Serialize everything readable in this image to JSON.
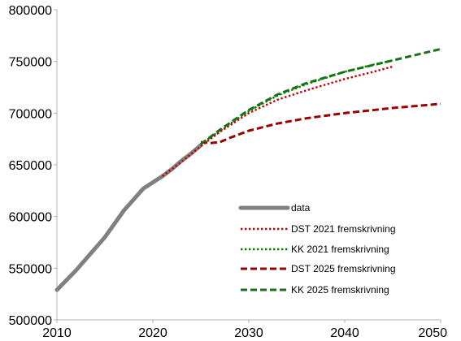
{
  "chart_data": {
    "type": "line",
    "title": "",
    "xlabel": "",
    "ylabel": "",
    "xlim": [
      2010,
      2050
    ],
    "ylim": [
      500000,
      800000
    ],
    "x_ticks": [
      "2010",
      "2020",
      "2030",
      "2040",
      "2050"
    ],
    "y_ticks": [
      "500000",
      "550000",
      "600000",
      "650000",
      "700000",
      "750000",
      "800000"
    ],
    "grid": false,
    "legend_position": "inside-bottom-right",
    "series": [
      {
        "name": "data",
        "color": "#808080",
        "style": "solid",
        "x": [
          2010,
          2012,
          2015,
          2017,
          2019,
          2020,
          2021,
          2022,
          2023,
          2024,
          2025
        ],
        "y": [
          529000,
          548000,
          580000,
          606000,
          627000,
          633000,
          639000,
          646000,
          654000,
          661000,
          669000
        ]
      },
      {
        "name": "DST 2021 fremskrivning",
        "color": "#c00000",
        "style": "dotted",
        "x": [
          2021,
          2023,
          2025,
          2027,
          2030,
          2033,
          2036,
          2040,
          2043,
          2045
        ],
        "y": [
          639000,
          653000,
          668000,
          682000,
          700000,
          713000,
          722000,
          733000,
          740000,
          745000
        ]
      },
      {
        "name": "KK 2021 fremskrivning",
        "color": "#008000",
        "style": "dotted",
        "x": [
          2025,
          2027,
          2030,
          2033,
          2036,
          2040,
          2043,
          2045
        ],
        "y": [
          670000,
          683000,
          702000,
          717000,
          728000,
          740000,
          747000,
          751000
        ]
      },
      {
        "name": "DST 2025 fremskrivning",
        "color": "#9b0000",
        "style": "dashed",
        "x": [
          2025,
          2026,
          2027,
          2028,
          2030,
          2033,
          2036,
          2040,
          2045,
          2050
        ],
        "y": [
          672000,
          671000,
          672000,
          676000,
          683000,
          690000,
          695000,
          700000,
          705000,
          709000
        ]
      },
      {
        "name": "KK 2025 fremskrivning",
        "color": "#1e6e1e",
        "style": "dashed",
        "x": [
          2025,
          2027,
          2030,
          2033,
          2036,
          2040,
          2045,
          2050
        ],
        "y": [
          670000,
          684000,
          703000,
          718000,
          729000,
          740000,
          751000,
          762000
        ]
      }
    ]
  }
}
